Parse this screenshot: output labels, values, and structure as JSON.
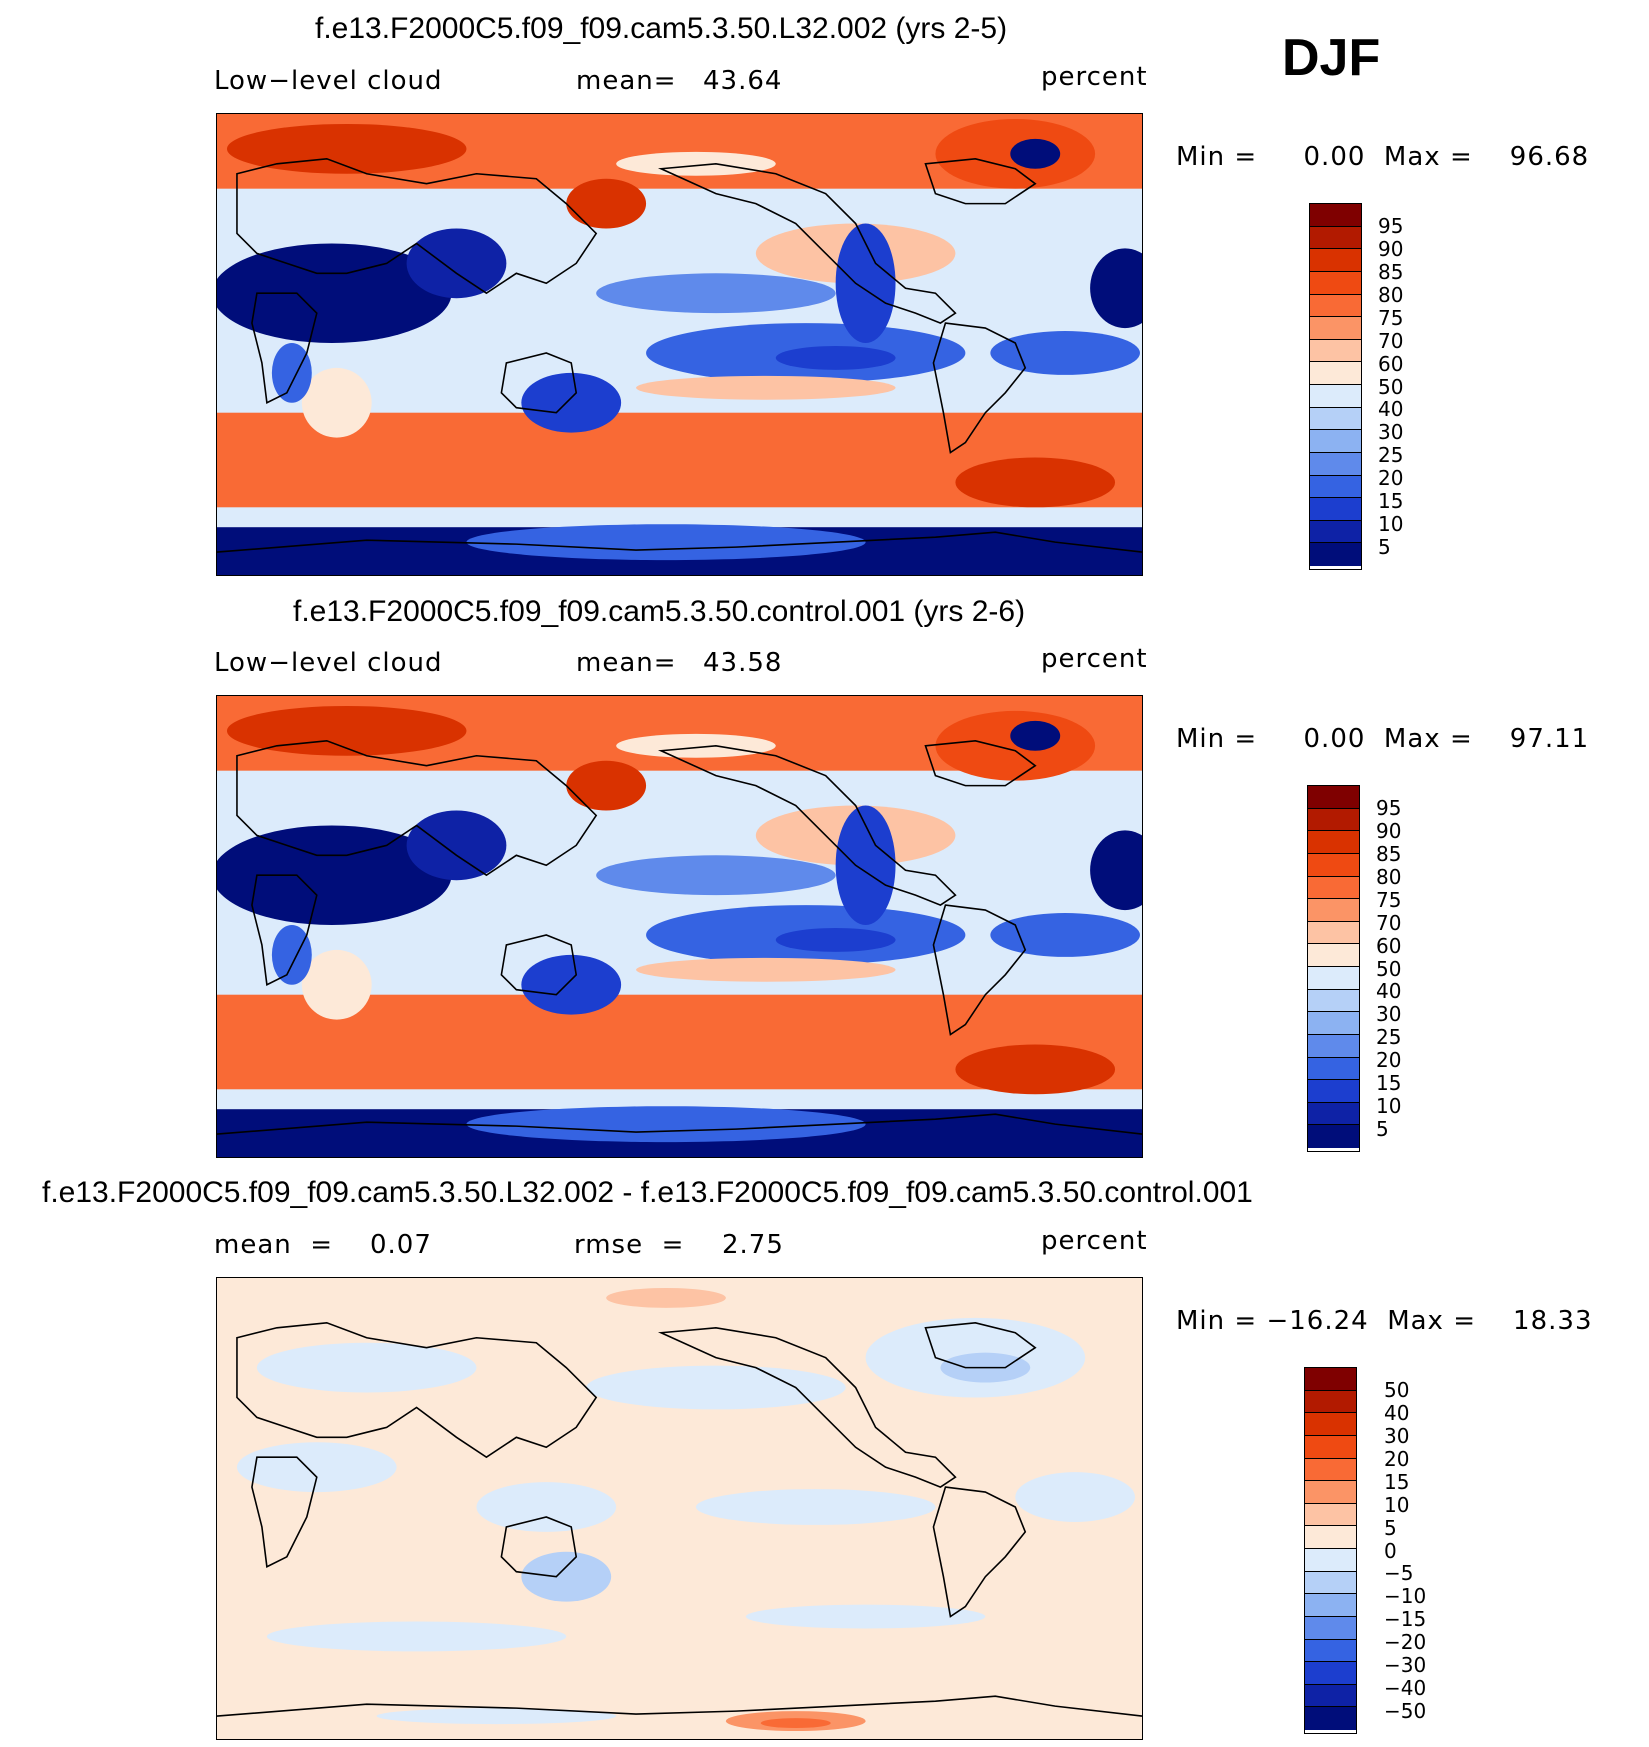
{
  "season": "DJF",
  "panels": [
    {
      "title": "f.e13.F2000C5.f09_f09.cam5.3.50.L32.002 (yrs 2-5)",
      "left_label": "Low−level cloud",
      "mid_label": "mean=",
      "mid_value": "43.64",
      "units": "percent",
      "minmax": "Min =     0.00  Max =    96.68",
      "field_type": "absolute"
    },
    {
      "title": "f.e13.F2000C5.f09_f09.cam5.3.50.control.001 (yrs 2-6)",
      "left_label": "Low−level cloud",
      "mid_label": "mean=",
      "mid_value": "43.58",
      "units": "percent",
      "minmax": "Min =     0.00  Max =    97.11",
      "field_type": "absolute"
    },
    {
      "title": "f.e13.F2000C5.f09_f09.cam5.3.50.L32.002 - f.e13.F2000C5.f09_f09.cam5.3.50.control.001",
      "left_label": "mean  =",
      "left_value": "0.07",
      "mid_label": "rmse  =",
      "mid_value": "2.75",
      "units": "percent",
      "minmax": "Min = −16.24  Max =    18.33",
      "field_type": "difference"
    }
  ],
  "colorbars": [
    {
      "labels": [
        "95",
        "90",
        "85",
        "80",
        "75",
        "70",
        "60",
        "50",
        "40",
        "30",
        "25",
        "20",
        "15",
        "10",
        "5"
      ],
      "colors": [
        "#7f0000",
        "#b21a00",
        "#d93200",
        "#ef4a12",
        "#f96a35",
        "#fb9466",
        "#fdc3a4",
        "#fde9d8",
        "#dcebfb",
        "#b5d0f7",
        "#8cb2f2",
        "#5f8aeb",
        "#3563e2",
        "#1c3ecf",
        "#0e22a6",
        "#000d7a"
      ]
    },
    {
      "labels": [
        "95",
        "90",
        "85",
        "80",
        "75",
        "70",
        "60",
        "50",
        "40",
        "30",
        "25",
        "20",
        "15",
        "10",
        "5"
      ],
      "colors": [
        "#7f0000",
        "#b21a00",
        "#d93200",
        "#ef4a12",
        "#f96a35",
        "#fb9466",
        "#fdc3a4",
        "#fde9d8",
        "#dcebfb",
        "#b5d0f7",
        "#8cb2f2",
        "#5f8aeb",
        "#3563e2",
        "#1c3ecf",
        "#0e22a6",
        "#000d7a"
      ]
    },
    {
      "labels": [
        "50",
        "40",
        "30",
        "20",
        "15",
        "10",
        "5",
        "0",
        "−5",
        "−10",
        "−15",
        "−20",
        "−30",
        "−40",
        "−50"
      ],
      "colors": [
        "#7f0000",
        "#b21a00",
        "#d93200",
        "#ef4a12",
        "#f96a35",
        "#fb9466",
        "#fdc3a4",
        "#fde9d8",
        "#dcebfb",
        "#b5d0f7",
        "#8cb2f2",
        "#5f8aeb",
        "#3563e2",
        "#1c3ecf",
        "#0e22a6",
        "#000d7a"
      ]
    }
  ]
}
